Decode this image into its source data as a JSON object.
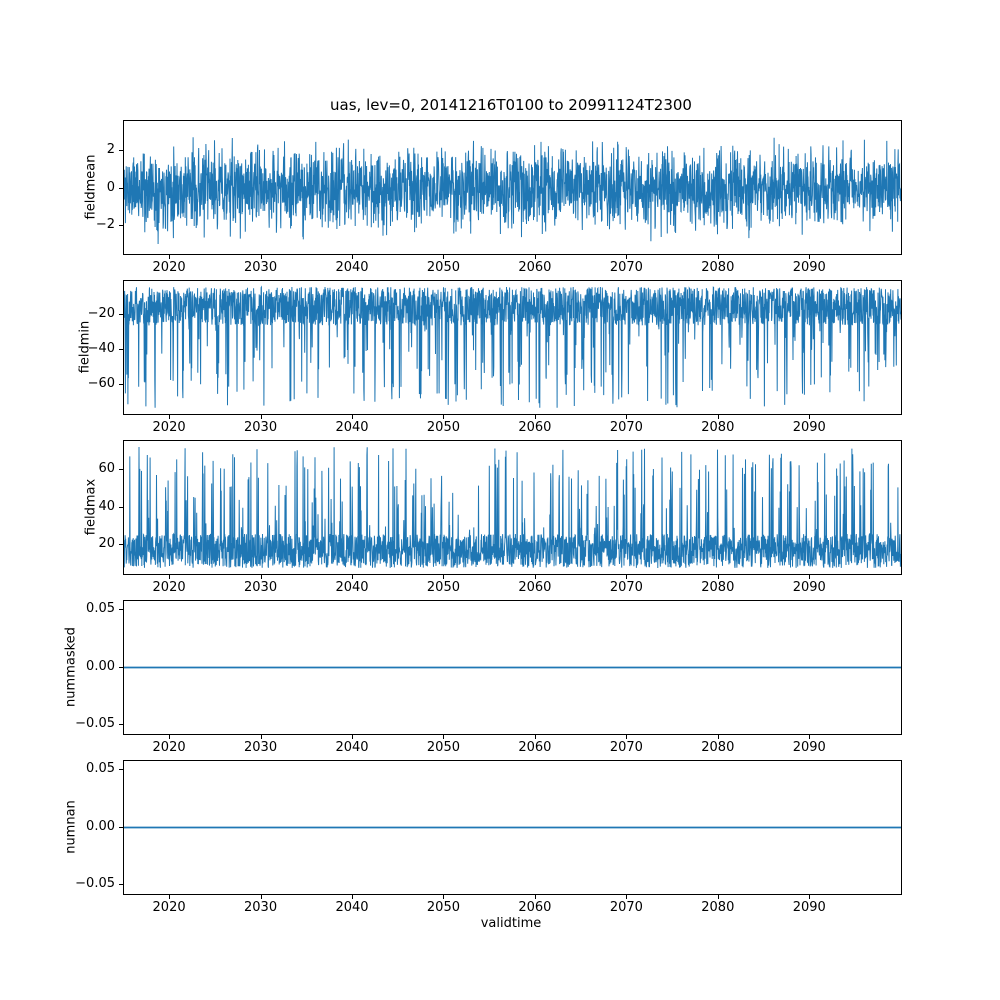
{
  "chart_data": {
    "type": "line",
    "title": "uas, lev=0, 20141216T0100 to 20991124T2300",
    "xlabel": "validtime",
    "line_color": "#1f77b4",
    "grid": false,
    "legend": "none",
    "x": {
      "label": "validtime",
      "min": 2014.96,
      "max": 2099.92,
      "ticks": [
        2020,
        2030,
        2040,
        2050,
        2060,
        2070,
        2080,
        2090
      ],
      "tick_labels": [
        "2020",
        "2030",
        "2040",
        "2050",
        "2060",
        "2070",
        "2080",
        "2090"
      ]
    },
    "subplots": [
      {
        "name": "fieldmean",
        "ylabel": "fieldmean",
        "ylim": [
          -3.52,
          3.63
        ],
        "yticks": [
          -2,
          0,
          2
        ],
        "ytick_labels": [
          "−2",
          "0",
          "2"
        ],
        "summary": "dense high-frequency noise centred on 0, typical range −2.5 to 2.5, extremes near ±3.3",
        "series": {
          "kind": "noise",
          "mean": 0,
          "std": 1.05,
          "clip": [
            -3.25,
            3.35
          ]
        },
        "points": 2800,
        "seed": 11
      },
      {
        "name": "fieldmin",
        "ylabel": "fieldmin",
        "ylim": [
          -76.5,
          -0.6
        ],
        "yticks": [
          -60,
          -40,
          -20
        ],
        "ytick_labels": [
          "−60",
          "−40",
          "−20"
        ],
        "summary": "dense band between about −4 and −26 with recurring (roughly annual) downward spikes reaching −30 to −73",
        "series": {
          "kind": "noise-spikes",
          "base_min": -26,
          "base_max": -4,
          "spike_prob": 0.1,
          "spike_min": -73,
          "spike_max": -28
        },
        "points": 2800,
        "seed": 22
      },
      {
        "name": "fieldmax",
        "ylabel": "fieldmax",
        "ylim": [
          4.8,
          75.2
        ],
        "yticks": [
          20,
          40,
          60
        ],
        "ytick_labels": [
          "20",
          "40",
          "60"
        ],
        "summary": "dense band between about 8 and 26 with recurring (roughly annual) upward spikes reaching 30 to 72",
        "series": {
          "kind": "noise-spikes",
          "base_min": 8,
          "base_max": 26,
          "spike_prob": 0.1,
          "spike_min": 28,
          "spike_max": 72
        },
        "points": 2800,
        "seed": 33
      },
      {
        "name": "nummasked",
        "ylabel": "nummasked",
        "ylim": [
          -0.0583,
          0.0583
        ],
        "yticks": [
          -0.05,
          0,
          0.05
        ],
        "ytick_labels": [
          "−0.05",
          "0.00",
          "0.05"
        ],
        "summary": "constant 0 for the entire period",
        "series": {
          "kind": "constant",
          "value": 0
        },
        "points": 2,
        "seed": 44
      },
      {
        "name": "numnan",
        "ylabel": "numnan",
        "ylim": [
          -0.0583,
          0.0583
        ],
        "yticks": [
          -0.05,
          0,
          0.05
        ],
        "ytick_labels": [
          "−0.05",
          "0.00",
          "0.05"
        ],
        "summary": "constant 0 for the entire period",
        "series": {
          "kind": "constant",
          "value": 0
        },
        "points": 2,
        "seed": 55
      }
    ]
  }
}
